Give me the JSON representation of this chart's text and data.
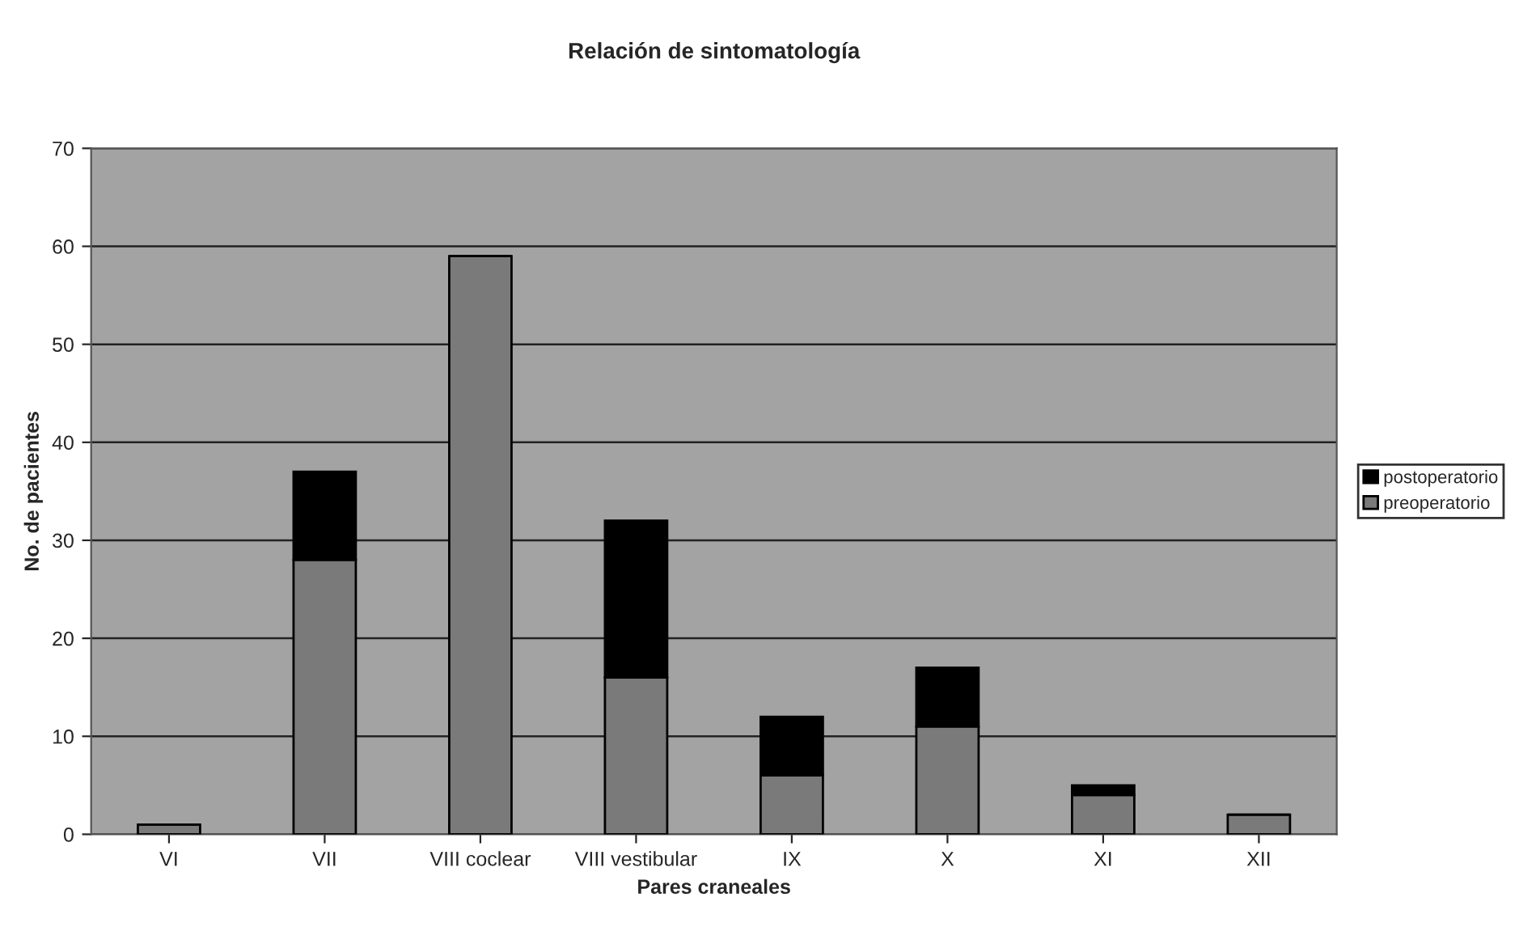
{
  "chart_data": {
    "type": "bar",
    "title": "Relación de sintomatología",
    "xlabel": "Pares craneales",
    "ylabel": "No. de pacientes",
    "categories": [
      "VI",
      "VII",
      "VIII coclear",
      "VIII vestibular",
      "IX",
      "X",
      "XI",
      "XII"
    ],
    "stacked": true,
    "series": [
      {
        "name": "preoperatorio",
        "color": "#7a7a7a",
        "values": [
          1,
          28,
          59,
          16,
          6,
          11,
          4,
          2
        ]
      },
      {
        "name": "postoperatorio",
        "color": "#000000",
        "values": [
          0,
          9,
          0,
          16,
          6,
          6,
          1,
          0
        ]
      }
    ],
    "ylim": [
      0,
      70
    ],
    "yticks": [
      0,
      10,
      20,
      30,
      40,
      50,
      60,
      70
    ],
    "grid": "y",
    "legend": "right"
  }
}
